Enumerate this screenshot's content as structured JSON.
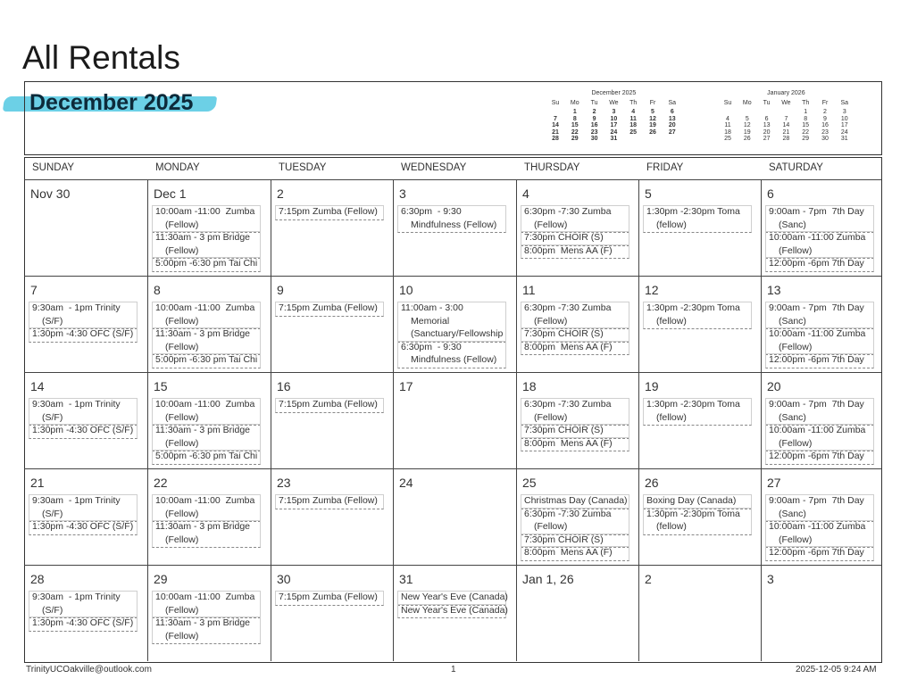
{
  "header": {
    "title": "All Rentals",
    "month": "December 2025"
  },
  "mini_calendars": [
    {
      "title": "December 2025",
      "weekdays": [
        "Su",
        "Mo",
        "Tu",
        "We",
        "Th",
        "Fr",
        "Sa"
      ],
      "weeks": [
        [
          1,
          2,
          3,
          4,
          5,
          6
        ],
        [
          7,
          8,
          9,
          10,
          11,
          12,
          13
        ],
        [
          14,
          15,
          16,
          17,
          18,
          19,
          20
        ],
        [
          21,
          22,
          23,
          24,
          25,
          26,
          27
        ],
        [
          28,
          29,
          30,
          31
        ]
      ]
    },
    {
      "title": "January 2026",
      "weekdays": [
        "Su",
        "Mo",
        "Tu",
        "We",
        "Th",
        "Fr",
        "Sa"
      ],
      "weeks": [
        [
          1,
          2,
          3
        ],
        [
          4,
          5,
          6,
          7,
          8,
          9,
          10
        ],
        [
          11,
          12,
          13,
          14,
          15,
          16,
          17
        ],
        [
          18,
          19,
          20,
          21,
          22,
          23,
          24
        ],
        [
          25,
          26,
          27,
          28,
          29,
          30,
          31
        ]
      ]
    }
  ],
  "weekdays": [
    "SUNDAY",
    "MONDAY",
    "TUESDAY",
    "WEDNESDAY",
    "THURSDAY",
    "FRIDAY",
    "SATURDAY"
  ],
  "weeks": [
    {
      "days": [
        {
          "label": "Nov 30",
          "events": []
        },
        {
          "label": "Dec 1",
          "events": [
            [
              "10:00am -11:00  Zumba",
              "(Fellow)"
            ],
            [
              "11:30am - 3 pm Bridge",
              "(Fellow)"
            ],
            [
              "5:00pm -6:30 pm Tai Chi"
            ]
          ]
        },
        {
          "label": "2",
          "events": [
            [
              "7:15pm Zumba (Fellow)"
            ]
          ]
        },
        {
          "label": "3",
          "events": [
            [
              "6:30pm  - 9:30",
              "Mindfulness (Fellow)"
            ]
          ]
        },
        {
          "label": "4",
          "events": [
            [
              "6:30pm -7:30 Zumba",
              "(Fellow)"
            ],
            [
              "7:30pm CHOIR (S)"
            ],
            [
              "8:00pm  Mens AA (F)"
            ]
          ]
        },
        {
          "label": "5",
          "events": [
            [
              "1:30pm -2:30pm Toma",
              "(fellow)"
            ]
          ]
        },
        {
          "label": "6",
          "events": [
            [
              "9:00am - 7pm  7th Day",
              "(Sanc)"
            ],
            [
              "10:00am -11:00 Zumba",
              "(Fellow)"
            ],
            [
              "12:00pm -6pm 7th Day"
            ]
          ]
        }
      ]
    },
    {
      "days": [
        {
          "label": "7",
          "events": [
            [
              "9:30am  - 1pm Trinity",
              "(S/F)"
            ],
            [
              "1:30pm -4:30 OFC (S/F)"
            ]
          ]
        },
        {
          "label": "8",
          "events": [
            [
              "10:00am -11:00  Zumba",
              "(Fellow)"
            ],
            [
              "11:30am - 3 pm Bridge",
              "(Fellow)"
            ],
            [
              "5:00pm -6:30 pm Tai Chi"
            ]
          ]
        },
        {
          "label": "9",
          "events": [
            [
              "7:15pm Zumba (Fellow)"
            ]
          ]
        },
        {
          "label": "10",
          "events": [
            [
              "11:00am - 3:00",
              "Memorial",
              "(Sanctuary/Fellowship"
            ],
            [
              "6:30pm  - 9:30",
              "Mindfulness (Fellow)"
            ]
          ]
        },
        {
          "label": "11",
          "events": [
            [
              "6:30pm -7:30 Zumba",
              "(Fellow)"
            ],
            [
              "7:30pm CHOIR (S)"
            ],
            [
              "8:00pm  Mens AA (F)"
            ]
          ]
        },
        {
          "label": "12",
          "events": [
            [
              "1:30pm -2:30pm Toma",
              "(fellow)"
            ]
          ]
        },
        {
          "label": "13",
          "events": [
            [
              "9:00am - 7pm  7th Day",
              "(Sanc)"
            ],
            [
              "10:00am -11:00 Zumba",
              "(Fellow)"
            ],
            [
              "12:00pm -6pm 7th Day"
            ]
          ]
        }
      ]
    },
    {
      "days": [
        {
          "label": "14",
          "events": [
            [
              "9:30am  - 1pm Trinity",
              "(S/F)"
            ],
            [
              "1:30pm -4:30 OFC (S/F)"
            ]
          ]
        },
        {
          "label": "15",
          "events": [
            [
              "10:00am -11:00  Zumba",
              "(Fellow)"
            ],
            [
              "11:30am - 3 pm Bridge",
              "(Fellow)"
            ],
            [
              "5:00pm -6:30 pm Tai Chi"
            ]
          ]
        },
        {
          "label": "16",
          "events": [
            [
              "7:15pm Zumba (Fellow)"
            ]
          ]
        },
        {
          "label": "17",
          "events": []
        },
        {
          "label": "18",
          "events": [
            [
              "6:30pm -7:30 Zumba",
              "(Fellow)"
            ],
            [
              "7:30pm CHOIR (S)"
            ],
            [
              "8:00pm  Mens AA (F)"
            ]
          ]
        },
        {
          "label": "19",
          "events": [
            [
              "1:30pm -2:30pm Toma",
              "(fellow)"
            ]
          ]
        },
        {
          "label": "20",
          "events": [
            [
              "9:00am - 7pm  7th Day",
              "(Sanc)"
            ],
            [
              "10:00am -11:00 Zumba",
              "(Fellow)"
            ],
            [
              "12:00pm -6pm 7th Day"
            ]
          ]
        }
      ]
    },
    {
      "days": [
        {
          "label": "21",
          "events": [
            [
              "9:30am  - 1pm Trinity",
              "(S/F)"
            ],
            [
              "1:30pm -4:30 OFC (S/F)"
            ]
          ]
        },
        {
          "label": "22",
          "events": [
            [
              "10:00am -11:00  Zumba",
              "(Fellow)"
            ],
            [
              "11:30am - 3 pm Bridge",
              "(Fellow)"
            ]
          ]
        },
        {
          "label": "23",
          "events": [
            [
              "7:15pm Zumba (Fellow)"
            ]
          ]
        },
        {
          "label": "24",
          "events": []
        },
        {
          "label": "25",
          "events": [
            [
              "Christmas Day (Canada)"
            ],
            [
              "6:30pm -7:30 Zumba",
              "(Fellow)"
            ],
            [
              "7:30pm CHOIR (S)"
            ],
            [
              "8:00pm  Mens AA (F)"
            ]
          ]
        },
        {
          "label": "26",
          "events": [
            [
              "Boxing Day (Canada)"
            ],
            [
              "1:30pm -2:30pm Toma",
              "(fellow)"
            ]
          ]
        },
        {
          "label": "27",
          "events": [
            [
              "9:00am - 7pm  7th Day",
              "(Sanc)"
            ],
            [
              "10:00am -11:00 Zumba",
              "(Fellow)"
            ],
            [
              "12:00pm -6pm 7th Day"
            ]
          ]
        }
      ]
    },
    {
      "days": [
        {
          "label": "28",
          "events": [
            [
              "9:30am  - 1pm Trinity",
              "(S/F)"
            ],
            [
              "1:30pm -4:30 OFC (S/F)"
            ]
          ]
        },
        {
          "label": "29",
          "events": [
            [
              "10:00am -11:00  Zumba",
              "(Fellow)"
            ],
            [
              "11:30am - 3 pm Bridge",
              "(Fellow)"
            ]
          ]
        },
        {
          "label": "30",
          "events": [
            [
              "7:15pm Zumba (Fellow)"
            ]
          ]
        },
        {
          "label": "31",
          "events": [
            [
              "New Year's Eve (Canada)"
            ],
            [
              "New Year's Eve (Canada)"
            ]
          ]
        },
        {
          "label": "Jan 1, 26",
          "events": []
        },
        {
          "label": "2",
          "events": []
        },
        {
          "label": "3",
          "events": []
        }
      ]
    }
  ],
  "footer": {
    "email": "TrinityUCOakville@outlook.com",
    "page": 1,
    "timestamp": "2025-12-05 9:24 AM"
  }
}
